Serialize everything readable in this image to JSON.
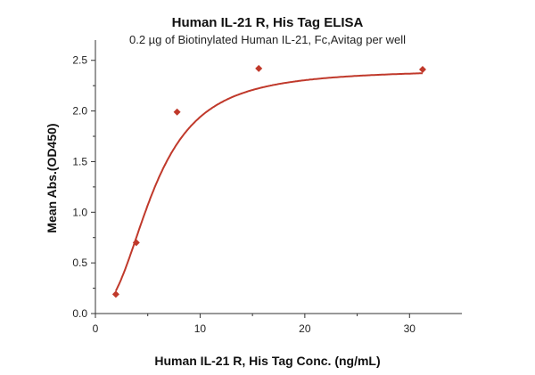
{
  "chart_data": {
    "type": "scatter",
    "title": "Human IL-21 R, His Tag ELISA",
    "subtitle": "0.2 µg of Biotinylated Human IL-21, Fc,Avitag per well",
    "xlabel": "Human IL-21 R, His Tag Conc. (ng/mL)",
    "ylabel": "Mean Abs.(OD450)",
    "xlim": [
      0,
      35
    ],
    "ylim": [
      0,
      2.7
    ],
    "x_ticks": [
      0,
      10,
      20,
      30
    ],
    "y_ticks": [
      0.0,
      0.5,
      1.0,
      1.5,
      2.0,
      2.5
    ],
    "x_tick_labels": [
      "0",
      "10",
      "20",
      "30"
    ],
    "y_tick_labels": [
      "0.0",
      "0.5",
      "1.0",
      "1.5",
      "2.0",
      "2.5"
    ],
    "grid": false,
    "series": [
      {
        "marker": "diamond",
        "color": "#c0392b",
        "fit": "four-parameter logistic",
        "x": [
          1.95,
          3.9,
          7.8,
          15.6,
          31.25
        ],
        "y": [
          0.19,
          0.7,
          1.99,
          2.42,
          2.41
        ]
      }
    ]
  }
}
